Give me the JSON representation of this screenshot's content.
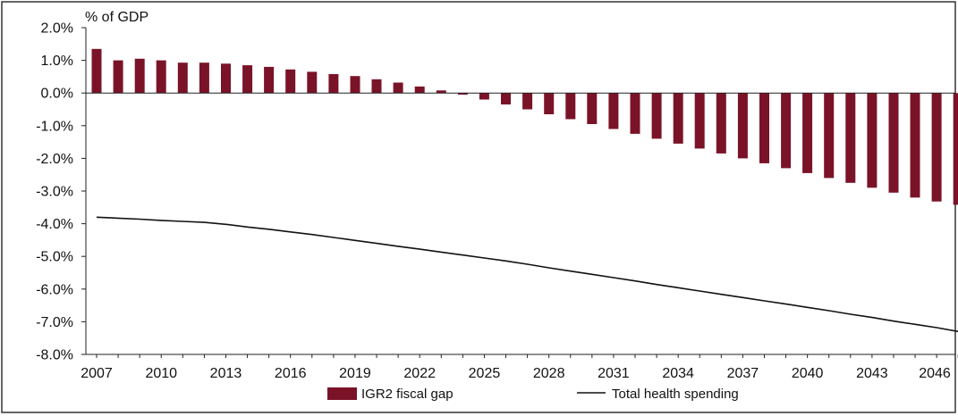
{
  "chart_data": {
    "type": "bar",
    "unit_label": "% of GDP",
    "x": [
      2007,
      2008,
      2009,
      2010,
      2011,
      2012,
      2013,
      2014,
      2015,
      2016,
      2017,
      2018,
      2019,
      2020,
      2021,
      2022,
      2023,
      2024,
      2025,
      2026,
      2027,
      2028,
      2029,
      2030,
      2031,
      2032,
      2033,
      2034,
      2035,
      2036,
      2037,
      2038,
      2039,
      2040,
      2041,
      2042,
      2043,
      2044,
      2045,
      2046,
      2047
    ],
    "x_tick_labels": [
      "2007",
      "2010",
      "2013",
      "2016",
      "2019",
      "2022",
      "2025",
      "2028",
      "2031",
      "2034",
      "2037",
      "2040",
      "2043",
      "2046"
    ],
    "y_tick_labels": [
      "2.0%",
      "1.0%",
      "0.0%",
      "-1.0%",
      "-2.0%",
      "-3.0%",
      "-4.0%",
      "-5.0%",
      "-6.0%",
      "-7.0%",
      "-8.0%"
    ],
    "ylim": [
      -8.0,
      2.0
    ],
    "y_step": 1.0,
    "grid": false,
    "legend_position": "bottom",
    "series": [
      {
        "name": "IGR2 fiscal gap",
        "kind": "bar",
        "color": "#7a1328",
        "values": [
          1.35,
          1.0,
          1.05,
          1.0,
          0.93,
          0.93,
          0.9,
          0.85,
          0.8,
          0.72,
          0.65,
          0.58,
          0.52,
          0.42,
          0.32,
          0.2,
          0.08,
          -0.05,
          -0.2,
          -0.35,
          -0.5,
          -0.65,
          -0.8,
          -0.95,
          -1.1,
          -1.25,
          -1.4,
          -1.55,
          -1.7,
          -1.85,
          -2.0,
          -2.15,
          -2.3,
          -2.45,
          -2.6,
          -2.75,
          -2.9,
          -3.05,
          -3.2,
          -3.32,
          -3.42
        ]
      },
      {
        "name": "Total health spending",
        "kind": "line",
        "color": "#111111",
        "values": [
          -3.8,
          -3.83,
          -3.86,
          -3.9,
          -3.93,
          -3.96,
          -4.02,
          -4.1,
          -4.17,
          -4.25,
          -4.33,
          -4.42,
          -4.51,
          -4.6,
          -4.69,
          -4.78,
          -4.87,
          -4.96,
          -5.05,
          -5.14,
          -5.24,
          -5.35,
          -5.45,
          -5.55,
          -5.65,
          -5.75,
          -5.86,
          -5.96,
          -6.06,
          -6.16,
          -6.26,
          -6.36,
          -6.46,
          -6.56,
          -6.66,
          -6.77,
          -6.87,
          -6.98,
          -7.08,
          -7.18,
          -7.3
        ]
      }
    ]
  }
}
